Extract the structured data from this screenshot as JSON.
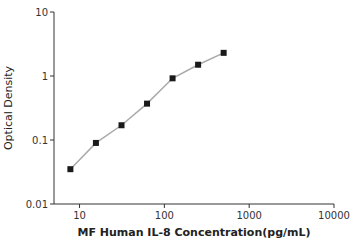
{
  "chart_data": {
    "type": "line",
    "x": [
      7.8,
      15.6,
      31.25,
      62.5,
      125,
      250,
      500
    ],
    "values": [
      0.035,
      0.09,
      0.17,
      0.37,
      0.92,
      1.5,
      2.3
    ],
    "xlabel": "MF Human IL-8 Concentration(pg/mL)",
    "ylabel": "Optical Density",
    "xlim": [
      5,
      10000
    ],
    "ylim": [
      0.01,
      10
    ],
    "xticks": [
      10,
      100,
      1000,
      10000
    ],
    "yticks": [
      0.01,
      0.1,
      1,
      10
    ],
    "log": true,
    "color": "#aaaaaa",
    "marker": "square",
    "grid": false
  }
}
